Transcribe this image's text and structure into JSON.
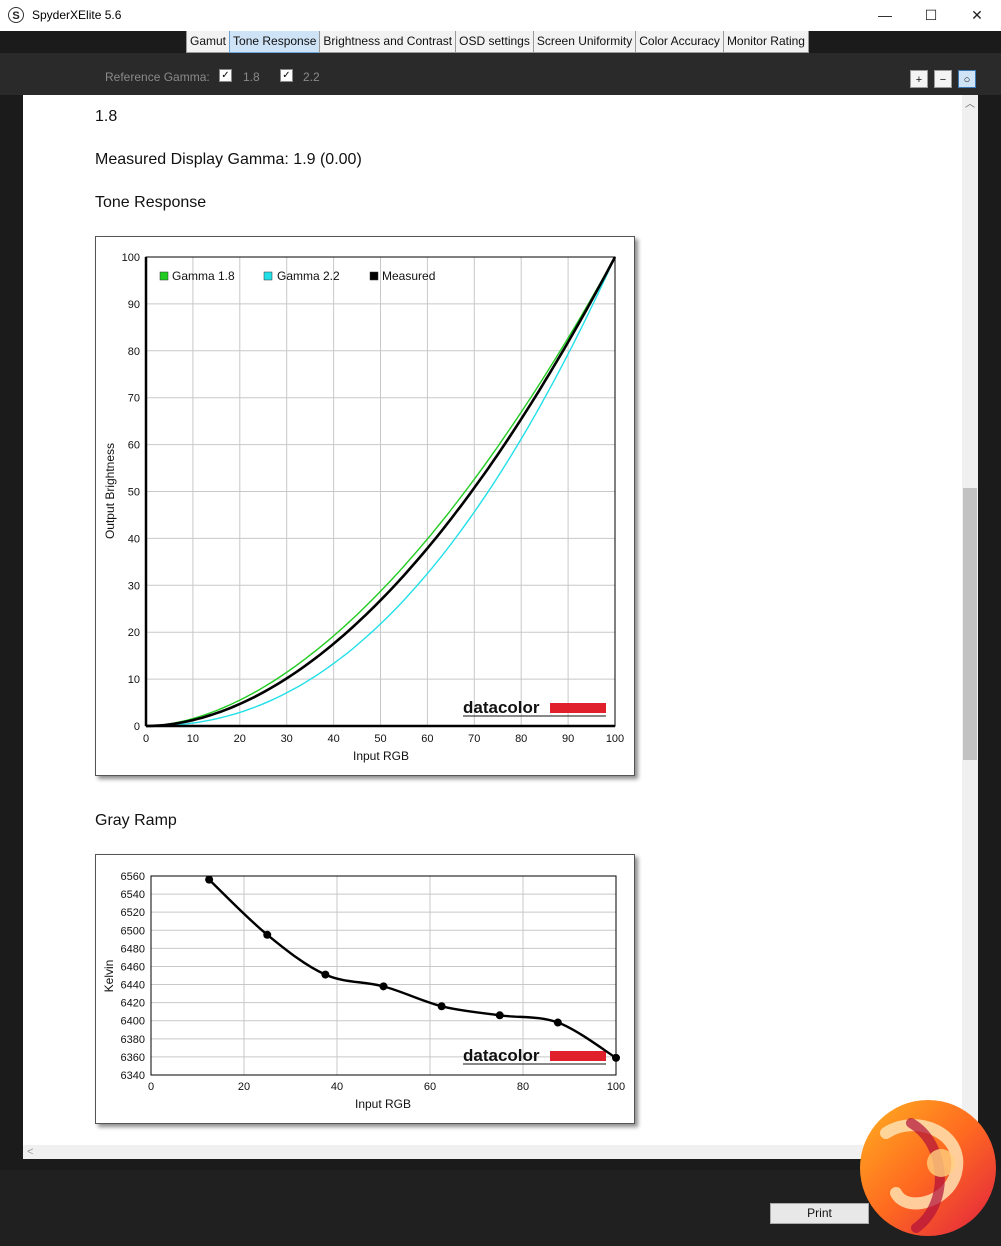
{
  "window": {
    "title": "SpyderXElite 5.6",
    "app_icon": "S",
    "minimize": "—",
    "maximize": "☐",
    "close": "✕"
  },
  "tabs": [
    {
      "label": "Gamut",
      "active": false
    },
    {
      "label": "Tone Response",
      "active": true
    },
    {
      "label": "Brightness and Contrast",
      "active": false
    },
    {
      "label": "OSD settings",
      "active": false
    },
    {
      "label": "Screen Uniformity",
      "active": false
    },
    {
      "label": "Color Accuracy",
      "active": false
    },
    {
      "label": "Monitor Rating",
      "active": false
    }
  ],
  "reference": {
    "label": "Reference Gamma:",
    "gamma18": {
      "label": "1.8",
      "checked": true
    },
    "gamma22": {
      "label": "2.2",
      "checked": true
    }
  },
  "zoom": {
    "in": "+",
    "out": "−",
    "fit": "○"
  },
  "report": {
    "gamma_value": "1.8",
    "measured_text": "Measured Display Gamma: 1.9 (0.00)",
    "tone_title": "Tone Response",
    "gray_title": "Gray Ramp"
  },
  "brand_text": "datacolor",
  "footer": {
    "print_label": "Print"
  },
  "colors": {
    "gamma18": "#22cc22",
    "gamma22": "#22e0e8",
    "measured": "#000000",
    "brand_red": "#e0202a"
  },
  "chart_data": [
    {
      "type": "line",
      "title": "",
      "xlabel": "Input RGB",
      "ylabel": "Output Brightness",
      "xlim": [
        0,
        100
      ],
      "ylim": [
        0,
        100
      ],
      "xticks": [
        0,
        10,
        20,
        30,
        40,
        50,
        60,
        70,
        80,
        90,
        100
      ],
      "yticks": [
        0,
        10,
        20,
        30,
        40,
        50,
        60,
        70,
        80,
        90,
        100
      ],
      "grid": true,
      "legend": "top-left",
      "series": [
        {
          "name": "Gamma 1.8",
          "color": "#22cc22",
          "gamma": 1.8,
          "x": [
            0,
            10,
            20,
            30,
            40,
            50,
            60,
            70,
            80,
            90,
            100
          ],
          "y": [
            0,
            1.6,
            5.5,
            11.5,
            19.2,
            28.7,
            39.9,
            52.6,
            66.9,
            82.7,
            100
          ]
        },
        {
          "name": "Gamma 2.2",
          "color": "#22e0e8",
          "gamma": 2.2,
          "x": [
            0,
            10,
            20,
            30,
            40,
            50,
            60,
            70,
            80,
            90,
            100
          ],
          "y": [
            0,
            0.6,
            2.9,
            7.1,
            13.3,
            21.8,
            32.5,
            45.6,
            61.2,
            79.3,
            100
          ]
        },
        {
          "name": "Measured",
          "color": "#000000",
          "gamma": 1.9,
          "x": [
            0,
            10,
            20,
            30,
            40,
            50,
            60,
            70,
            80,
            90,
            100
          ],
          "y": [
            0,
            1.3,
            4.7,
            10.2,
            17.5,
            26.8,
            37.9,
            50.8,
            65.4,
            81.9,
            100
          ]
        }
      ]
    },
    {
      "type": "line",
      "title": "",
      "xlabel": "Input RGB",
      "ylabel": "Kelvin",
      "xlim": [
        0,
        100
      ],
      "ylim": [
        6340,
        6560
      ],
      "xticks": [
        0,
        20,
        40,
        60,
        80,
        100
      ],
      "yticks": [
        6340,
        6360,
        6380,
        6400,
        6420,
        6440,
        6460,
        6480,
        6500,
        6520,
        6540,
        6560
      ],
      "grid": true,
      "series": [
        {
          "name": "",
          "color": "#000000",
          "x": [
            12.5,
            25,
            37.5,
            50,
            62.5,
            75,
            87.5,
            100
          ],
          "y": [
            6556,
            6495,
            6451,
            6438,
            6416,
            6406,
            6398,
            6359
          ]
        }
      ]
    }
  ]
}
